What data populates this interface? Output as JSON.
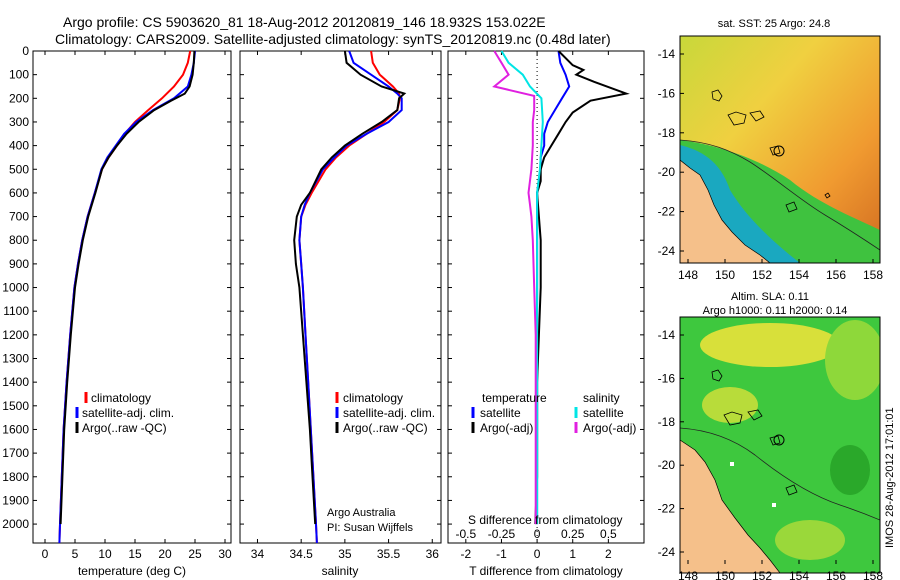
{
  "header": {
    "line1": "Argo profile: CS 5903620_81 18-Aug-2012 20120819_146 18.932S 153.022E",
    "line2": "Climatology: CARS2009. Satellite-adjusted climatology: synTS_20120819.nc (0.48d later)"
  },
  "colors": {
    "climatology": "#ff0000",
    "satellite": "#0000ff",
    "argo": "#000000",
    "sal_sat": "#00e5e5",
    "sal_argo": "#e020e0",
    "land": "#f5c08a"
  },
  "chart_data": [
    {
      "type": "line",
      "id": "temperature",
      "xlabel": "temperature (deg C)",
      "ylabel": "",
      "xlim": [
        -2,
        31
      ],
      "ylim": [
        2080,
        0
      ],
      "xticks": [
        "0",
        "5",
        "10",
        "15",
        "20",
        "25",
        "30"
      ],
      "yticks": [
        "0",
        "100",
        "200",
        "300",
        "400",
        "500",
        "600",
        "700",
        "800",
        "900",
        "1000",
        "1100",
        "1200",
        "1300",
        "1400",
        "1500",
        "1600",
        "1700",
        "1800",
        "1900",
        "2000"
      ],
      "legend": [
        "climatology",
        "satellite-adj. clim.",
        "Argo(..raw -QC)"
      ],
      "series": [
        {
          "name": "climatology",
          "color": "#ff0000",
          "points": [
            [
              24.2,
              0
            ],
            [
              23.8,
              50
            ],
            [
              23.0,
              100
            ],
            [
              21.5,
              150
            ],
            [
              19.5,
              200
            ],
            [
              17.2,
              250
            ],
            [
              15.0,
              300
            ],
            [
              13.3,
              350
            ],
            [
              12.0,
              400
            ],
            [
              10.6,
              450
            ],
            [
              9.5,
              500
            ],
            [
              8.3,
              600
            ],
            [
              7.1,
              700
            ],
            [
              6.2,
              800
            ],
            [
              5.5,
              900
            ],
            [
              4.9,
              1000
            ],
            [
              4.2,
              1200
            ],
            [
              3.6,
              1400
            ],
            [
              3.1,
              1600
            ],
            [
              2.8,
              1800
            ],
            [
              2.5,
              2000
            ],
            [
              2.4,
              2080
            ]
          ]
        },
        {
          "name": "satellite",
          "color": "#0000ff",
          "points": [
            [
              25.0,
              0
            ],
            [
              24.8,
              50
            ],
            [
              24.4,
              100
            ],
            [
              23.8,
              150
            ],
            [
              21.5,
              200
            ],
            [
              18.0,
              250
            ],
            [
              15.2,
              300
            ],
            [
              13.2,
              350
            ],
            [
              11.8,
              400
            ],
            [
              10.4,
              450
            ],
            [
              9.4,
              500
            ],
            [
              8.3,
              600
            ],
            [
              7.1,
              700
            ],
            [
              6.2,
              800
            ],
            [
              5.5,
              900
            ],
            [
              4.9,
              1000
            ],
            [
              4.2,
              1200
            ],
            [
              3.6,
              1400
            ],
            [
              3.1,
              1600
            ],
            [
              2.8,
              1800
            ],
            [
              2.5,
              2000
            ],
            [
              2.4,
              2080
            ]
          ]
        },
        {
          "name": "Argo",
          "color": "#000000",
          "points": [
            [
              24.9,
              0
            ],
            [
              24.8,
              50
            ],
            [
              24.6,
              100
            ],
            [
              24.1,
              150
            ],
            [
              23.3,
              180
            ],
            [
              21.0,
              210
            ],
            [
              18.2,
              250
            ],
            [
              15.6,
              300
            ],
            [
              13.6,
              350
            ],
            [
              12.0,
              400
            ],
            [
              10.6,
              450
            ],
            [
              9.5,
              500
            ],
            [
              8.4,
              600
            ],
            [
              7.2,
              700
            ],
            [
              6.3,
              800
            ],
            [
              5.6,
              900
            ],
            [
              5.0,
              1000
            ],
            [
              4.3,
              1200
            ],
            [
              3.7,
              1400
            ],
            [
              3.2,
              1600
            ],
            [
              2.9,
              1800
            ],
            [
              2.6,
              2000
            ]
          ]
        }
      ]
    },
    {
      "type": "line",
      "id": "salinity",
      "xlabel": "salinity",
      "ylabel": "",
      "xlim": [
        33.8,
        36.1
      ],
      "ylim": [
        2080,
        0
      ],
      "xticks": [
        "34",
        "34.5",
        "35",
        "35.5",
        "36"
      ],
      "legend": [
        "climatology",
        "satellite-adj. clim.",
        "Argo(..raw -QC)"
      ],
      "annotation": [
        "Argo Australia",
        "PI: Susan Wijffels"
      ],
      "series": [
        {
          "name": "climatology",
          "color": "#ff0000",
          "points": [
            [
              35.3,
              0
            ],
            [
              35.32,
              50
            ],
            [
              35.4,
              100
            ],
            [
              35.55,
              150
            ],
            [
              35.62,
              180
            ],
            [
              35.63,
              200
            ],
            [
              35.6,
              250
            ],
            [
              35.45,
              300
            ],
            [
              35.25,
              350
            ],
            [
              35.05,
              400
            ],
            [
              34.9,
              450
            ],
            [
              34.78,
              500
            ],
            [
              34.62,
              600
            ],
            [
              34.55,
              650
            ],
            [
              34.5,
              700
            ],
            [
              34.48,
              800
            ],
            [
              34.5,
              900
            ],
            [
              34.52,
              1000
            ],
            [
              34.55,
              1200
            ],
            [
              34.58,
              1400
            ],
            [
              34.61,
              1600
            ],
            [
              34.64,
              1800
            ],
            [
              34.67,
              2000
            ],
            [
              34.68,
              2080
            ]
          ]
        },
        {
          "name": "satellite",
          "color": "#0000ff",
          "points": [
            [
              35.05,
              0
            ],
            [
              35.1,
              50
            ],
            [
              35.3,
              100
            ],
            [
              35.5,
              150
            ],
            [
              35.6,
              180
            ],
            [
              35.65,
              200
            ],
            [
              35.65,
              250
            ],
            [
              35.5,
              300
            ],
            [
              35.25,
              350
            ],
            [
              35.02,
              400
            ],
            [
              34.88,
              450
            ],
            [
              34.75,
              500
            ],
            [
              34.6,
              600
            ],
            [
              34.54,
              650
            ],
            [
              34.5,
              700
            ],
            [
              34.48,
              800
            ],
            [
              34.5,
              900
            ],
            [
              34.52,
              1000
            ],
            [
              34.55,
              1200
            ],
            [
              34.58,
              1400
            ],
            [
              34.61,
              1600
            ],
            [
              34.64,
              1800
            ],
            [
              34.67,
              2000
            ],
            [
              34.68,
              2080
            ]
          ]
        },
        {
          "name": "Argo",
          "color": "#000000",
          "points": [
            [
              35.0,
              0
            ],
            [
              35.02,
              50
            ],
            [
              35.18,
              100
            ],
            [
              35.42,
              150
            ],
            [
              35.68,
              180
            ],
            [
              35.62,
              200
            ],
            [
              35.6,
              250
            ],
            [
              35.42,
              300
            ],
            [
              35.2,
              350
            ],
            [
              35.0,
              400
            ],
            [
              34.85,
              450
            ],
            [
              34.73,
              500
            ],
            [
              34.6,
              600
            ],
            [
              34.5,
              650
            ],
            [
              34.45,
              700
            ],
            [
              34.42,
              800
            ],
            [
              34.44,
              900
            ],
            [
              34.48,
              1000
            ],
            [
              34.52,
              1200
            ],
            [
              34.56,
              1400
            ],
            [
              34.6,
              1600
            ],
            [
              34.63,
              1800
            ],
            [
              34.66,
              2000
            ]
          ]
        }
      ]
    },
    {
      "type": "line",
      "id": "difference",
      "xlabel": "T difference from climatology",
      "x2label": "S difference from climatology",
      "xlim": [
        -2.5,
        3.0
      ],
      "ylim": [
        2080,
        0
      ],
      "xticks": [
        "-2",
        "-1",
        "0",
        "1",
        "2"
      ],
      "x2ticks": [
        "-0.5",
        "-0.25",
        "0",
        "0.25",
        "0.5"
      ],
      "legend_t": [
        "temperature",
        "satellite",
        "Argo(-adj)"
      ],
      "legend_s": [
        "salinity",
        "satellite",
        "Argo(-adj)"
      ],
      "series": [
        {
          "name": "T satellite",
          "color": "#0000ff",
          "points": [
            [
              0.6,
              0
            ],
            [
              0.65,
              50
            ],
            [
              0.8,
              100
            ],
            [
              0.9,
              150
            ],
            [
              0.7,
              200
            ],
            [
              0.5,
              250
            ],
            [
              0.3,
              300
            ],
            [
              0.2,
              350
            ],
            [
              0.2,
              400
            ],
            [
              0.1,
              450
            ],
            [
              0.1,
              500
            ],
            [
              0.0,
              600
            ],
            [
              0.0,
              700
            ],
            [
              0.0,
              800
            ],
            [
              0.0,
              1000
            ],
            [
              0.0,
              2000
            ]
          ]
        },
        {
          "name": "T Argo",
          "color": "#000000",
          "points": [
            [
              0.6,
              0
            ],
            [
              0.8,
              30
            ],
            [
              1.0,
              60
            ],
            [
              1.3,
              80
            ],
            [
              1.1,
              100
            ],
            [
              1.6,
              130
            ],
            [
              2.5,
              180
            ],
            [
              1.5,
              210
            ],
            [
              1.0,
              260
            ],
            [
              0.8,
              300
            ],
            [
              0.6,
              350
            ],
            [
              0.4,
              400
            ],
            [
              0.2,
              450
            ],
            [
              0.1,
              500
            ],
            [
              0.1,
              550
            ],
            [
              0.0,
              600
            ],
            [
              0.05,
              700
            ],
            [
              0.1,
              800
            ],
            [
              0.1,
              1000
            ],
            [
              0.05,
              1200
            ],
            [
              0.0,
              1400
            ],
            [
              0.0,
              1600
            ],
            [
              0.0,
              1800
            ],
            [
              -0.05,
              2000
            ]
          ]
        },
        {
          "name": "S satellite",
          "color": "#00e5e5",
          "points": [
            [
              -0.25,
              0
            ],
            [
              -0.2,
              50
            ],
            [
              -0.1,
              100
            ],
            [
              -0.05,
              150
            ],
            [
              0.03,
              200
            ],
            [
              0.04,
              300
            ],
            [
              0.03,
              400
            ],
            [
              0.02,
              500
            ],
            [
              0.0,
              600
            ],
            [
              0.0,
              800
            ],
            [
              0.0,
              1000
            ],
            [
              0.0,
              2000
            ]
          ]
        },
        {
          "name": "S Argo",
          "color": "#e020e0",
          "points": [
            [
              -0.3,
              0
            ],
            [
              -0.25,
              50
            ],
            [
              -0.2,
              100
            ],
            [
              -0.3,
              150
            ],
            [
              -0.02,
              190
            ],
            [
              -0.02,
              250
            ],
            [
              -0.03,
              300
            ],
            [
              -0.03,
              400
            ],
            [
              -0.04,
              500
            ],
            [
              -0.06,
              600
            ],
            [
              -0.05,
              650
            ],
            [
              -0.04,
              700
            ],
            [
              -0.03,
              800
            ],
            [
              -0.02,
              1000
            ],
            [
              -0.01,
              1200
            ],
            [
              -0.01,
              1400
            ],
            [
              -0.01,
              1600
            ],
            [
              -0.01,
              1800
            ],
            [
              -0.01,
              2000
            ]
          ]
        }
      ]
    }
  ],
  "maps": {
    "top": {
      "title": "sat. SST: 25 Argo: 24.8",
      "lat_ticks": [
        "-14",
        "-16",
        "-18",
        "-20",
        "-22",
        "-24"
      ],
      "lon_ticks": [
        "148",
        "150",
        "152",
        "154",
        "156",
        "158"
      ]
    },
    "bottom": {
      "title1": "Altim. SLA: 0.11",
      "title2": "Argo h1000: 0.11 h2000: 0.14",
      "lat_ticks": [
        "-14",
        "-16",
        "-18",
        "-20",
        "-22",
        "-24"
      ],
      "lon_ticks": [
        "148",
        "150",
        "152",
        "154",
        "156",
        "158"
      ]
    }
  },
  "footer": {
    "imos": "IMOS 28-Aug-2012 17:01:01"
  }
}
